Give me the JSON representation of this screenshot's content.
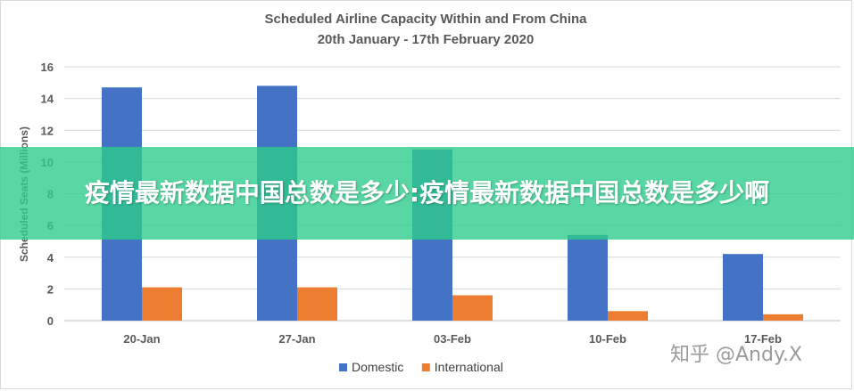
{
  "chart_data": {
    "type": "bar",
    "title": "Scheduled Airline Capacity Within and From China",
    "subtitle": "20th January - 17th February 2020",
    "ylabel": "Scheduled Seats (Millions)",
    "xlabel": "",
    "ylim": [
      0,
      16
    ],
    "yticks": [
      0,
      2,
      4,
      6,
      8,
      10,
      12,
      14,
      16
    ],
    "grid": true,
    "legend_position": "bottom",
    "categories": [
      "20-Jan",
      "27-Jan",
      "03-Feb",
      "10-Feb",
      "17-Feb"
    ],
    "series": [
      {
        "name": "Domestic",
        "color": "#4472c4",
        "values": [
          14.7,
          14.8,
          10.8,
          5.4,
          4.2
        ]
      },
      {
        "name": "International",
        "color": "#ed7d31",
        "values": [
          2.1,
          2.1,
          1.6,
          0.6,
          0.4
        ]
      }
    ]
  },
  "overlay": {
    "banner_text": "疫情最新数据中国总数是多少:疫情最新数据中国总数是多少啊",
    "banner_color": "#2ecc8c"
  },
  "watermark": {
    "text": "知乎 @Andy.X"
  }
}
